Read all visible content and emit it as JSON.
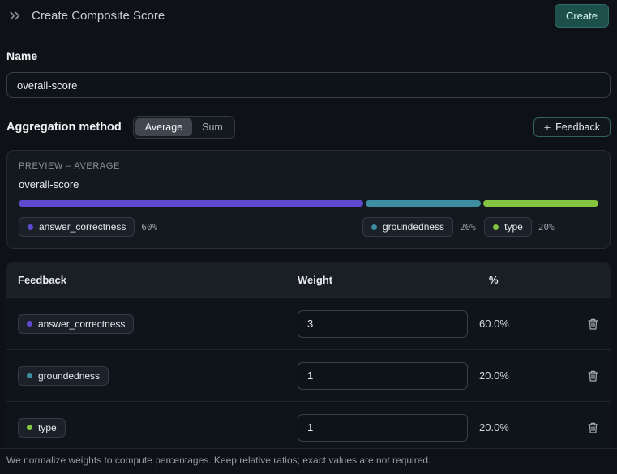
{
  "header": {
    "title": "Create Composite Score",
    "create_label": "Create"
  },
  "form": {
    "name_label": "Name",
    "name_value": "overall-score",
    "aggregation_label": "Aggregation method",
    "methods": [
      {
        "label": "Average",
        "selected": true
      },
      {
        "label": "Sum",
        "selected": false
      }
    ],
    "feedback_button": {
      "icon": "+",
      "label": "Feedback"
    }
  },
  "preview": {
    "heading": "PREVIEW – AVERAGE",
    "name": "overall-score",
    "segments": [
      {
        "name": "answer_correctness",
        "percent": 60,
        "percent_label": "60%",
        "color": "#5e49cf"
      },
      {
        "name": "groundedness",
        "percent": 20,
        "percent_label": "20%",
        "color": "#3f8da1"
      },
      {
        "name": "type",
        "percent": 20,
        "percent_label": "20%",
        "color": "#84c440"
      }
    ]
  },
  "table": {
    "headers": {
      "feedback": "Feedback",
      "weight": "Weight",
      "percent": "%"
    },
    "rows": [
      {
        "name": "answer_correctness",
        "color": "#5e49cf",
        "weight": "3",
        "percent": "60.0%"
      },
      {
        "name": "groundedness",
        "color": "#3f8da1",
        "weight": "1",
        "percent": "20.0%"
      },
      {
        "name": "type",
        "color": "#84c440",
        "weight": "1",
        "percent": "20.0%"
      }
    ]
  },
  "footer": {
    "note": "We normalize weights to compute percentages. Keep relative ratios; exact values are not required."
  }
}
